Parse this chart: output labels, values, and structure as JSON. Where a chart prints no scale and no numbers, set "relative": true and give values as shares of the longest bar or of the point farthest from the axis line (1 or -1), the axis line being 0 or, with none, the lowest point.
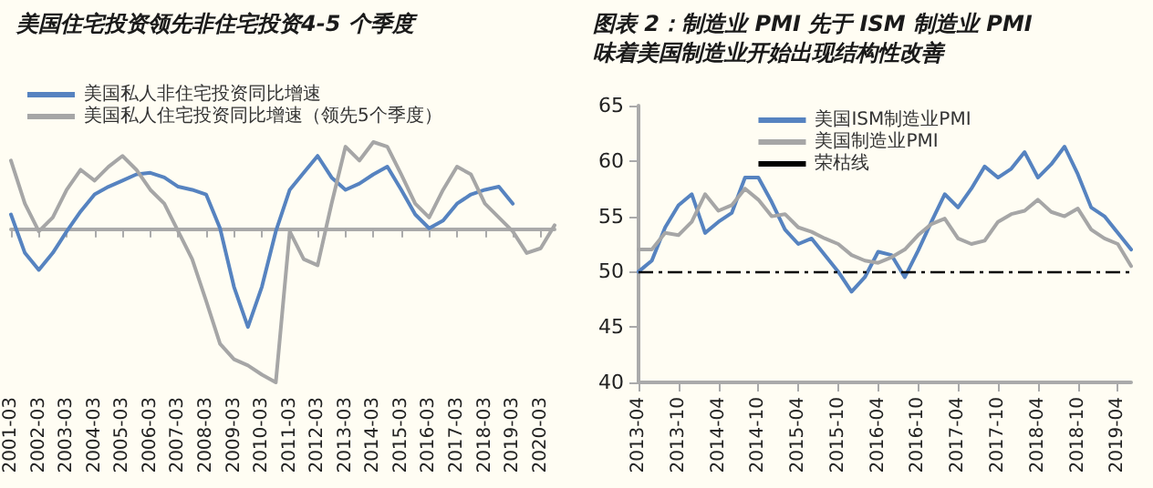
{
  "chart_data": [
    {
      "type": "line",
      "title": "美国住宅投资领先非住宅投资4-5 个季度",
      "relative": true,
      "legend": "top left",
      "grid": false,
      "marker": "none",
      "line_style": "solid",
      "tick_labels": "x",
      "categories": [
        "2001-03",
        null,
        "2002-03",
        null,
        "2003-03",
        null,
        "2004-03",
        null,
        "2005-03",
        null,
        "2006-03",
        null,
        "2007-03",
        null,
        "2008-03",
        null,
        "2009-03",
        null,
        "2010-03",
        null,
        "2011-03",
        null,
        "2012-03",
        null,
        "2013-03",
        null,
        "2014-03",
        null,
        "2015-03",
        null,
        "2016-03",
        null,
        "2017-03",
        null,
        "2018-03",
        null,
        "2019-03",
        null,
        "2020-03",
        null
      ],
      "series": [
        {
          "name": "美国私人非住宅投资同比增速",
          "color": "#5683c0",
          "values": [
            0.09,
            -0.16,
            -0.27,
            -0.16,
            -0.02,
            0.11,
            0.22,
            0.27,
            0.31,
            0.35,
            0.36,
            0.33,
            0.27,
            0.25,
            0.22,
            0,
            -0.38,
            -0.64,
            -0.38,
            -0.02,
            0.25,
            0.36,
            0.47,
            0.33,
            0.25,
            0.29,
            0.35,
            0.4,
            0.25,
            0.09,
            0,
            0.05,
            0.16,
            0.22,
            0.25,
            0.27,
            0.16,
            null,
            null,
            null
          ]
        },
        {
          "name": "美国私人住宅投资同比增速（领先5个季度）",
          "color": "#a6a6a6",
          "values": [
            0.44,
            0.16,
            -0.02,
            0.07,
            0.25,
            0.38,
            0.31,
            0.4,
            0.47,
            0.38,
            0.25,
            0.16,
            -0.02,
            -0.2,
            -0.47,
            -0.75,
            -0.85,
            -0.89,
            -0.95,
            -1,
            -0.02,
            -0.2,
            -0.24,
            0.16,
            0.53,
            0.44,
            0.56,
            0.53,
            0.35,
            0.16,
            0.07,
            0.25,
            0.4,
            0.35,
            0.16,
            0.07,
            -0.02,
            -0.16,
            -0.13,
            0.02
          ]
        }
      ]
    },
    {
      "type": "line",
      "title": "图表 2：制造业 PMI 先于 ISM 制造业 PMI",
      "subtitle": "味着美国制造业开始出现结构性改善",
      "legend": "top",
      "grid": false,
      "marker": "none",
      "line_style": "solid",
      "ylim": [
        40,
        65
      ],
      "yticks": [
        40,
        45,
        50,
        55,
        60,
        65
      ],
      "categories": [
        "2013-04",
        null,
        null,
        "2013-10",
        null,
        null,
        "2014-04",
        null,
        null,
        "2014-10",
        null,
        null,
        "2015-04",
        null,
        null,
        "2015-10",
        null,
        null,
        "2016-04",
        null,
        null,
        "2016-10",
        null,
        null,
        "2017-04",
        null,
        null,
        "2017-10",
        null,
        null,
        "2018-04",
        null,
        null,
        "2018-10",
        null,
        null,
        "2019-04",
        null
      ],
      "series": [
        {
          "name": "美国ISM制造业PMI",
          "color": "#5683c0",
          "values": [
            50,
            51,
            54,
            56,
            57,
            53.5,
            54.5,
            55.3,
            58.5,
            58.5,
            56.3,
            53.8,
            52.5,
            53,
            51.5,
            50,
            48.2,
            49.5,
            51.8,
            51.5,
            49.5,
            51.9,
            54.5,
            57,
            55.8,
            57.5,
            59.5,
            58.5,
            59.3,
            60.8,
            58.5,
            59.7,
            61.3,
            58.8,
            55.8,
            55,
            53.5,
            52
          ]
        },
        {
          "name": "美国制造业PMI",
          "color": "#a6a6a6",
          "values": [
            52,
            52,
            53.5,
            53.3,
            54.5,
            57,
            55.5,
            56,
            57.5,
            56.5,
            55,
            55.2,
            54,
            53.6,
            53,
            52.5,
            51.5,
            51,
            50.8,
            51.3,
            52,
            53.3,
            54.3,
            54.8,
            53,
            52.5,
            52.8,
            54.5,
            55.2,
            55.5,
            56.5,
            55.4,
            55,
            55.7,
            53.8,
            53,
            52.5,
            50.5
          ]
        }
      ],
      "ref_lines": [
        {
          "axis": "y",
          "value": 50,
          "label": "荣枯线",
          "color": "#000000",
          "line_style": "dashed"
        }
      ]
    }
  ]
}
